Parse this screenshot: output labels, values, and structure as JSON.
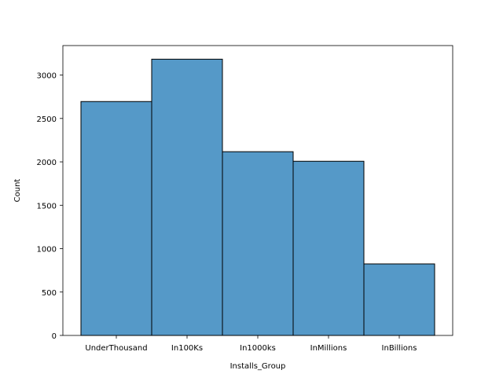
{
  "chart_data": {
    "type": "bar",
    "title": "",
    "xlabel": "Installs_Group",
    "ylabel": "Count",
    "categories": [
      "UnderThousand",
      "In100Ks",
      "In1000ks",
      "InMillions",
      "InBillions"
    ],
    "values": [
      2695,
      3183,
      2117,
      2007,
      824
    ],
    "ylim": [
      0,
      3340
    ],
    "yticks": [
      0,
      500,
      1000,
      1500,
      2000,
      2500,
      3000
    ],
    "grid": false,
    "legend": "none",
    "bar_color": "#5599c8",
    "edge_color": "#000000"
  }
}
